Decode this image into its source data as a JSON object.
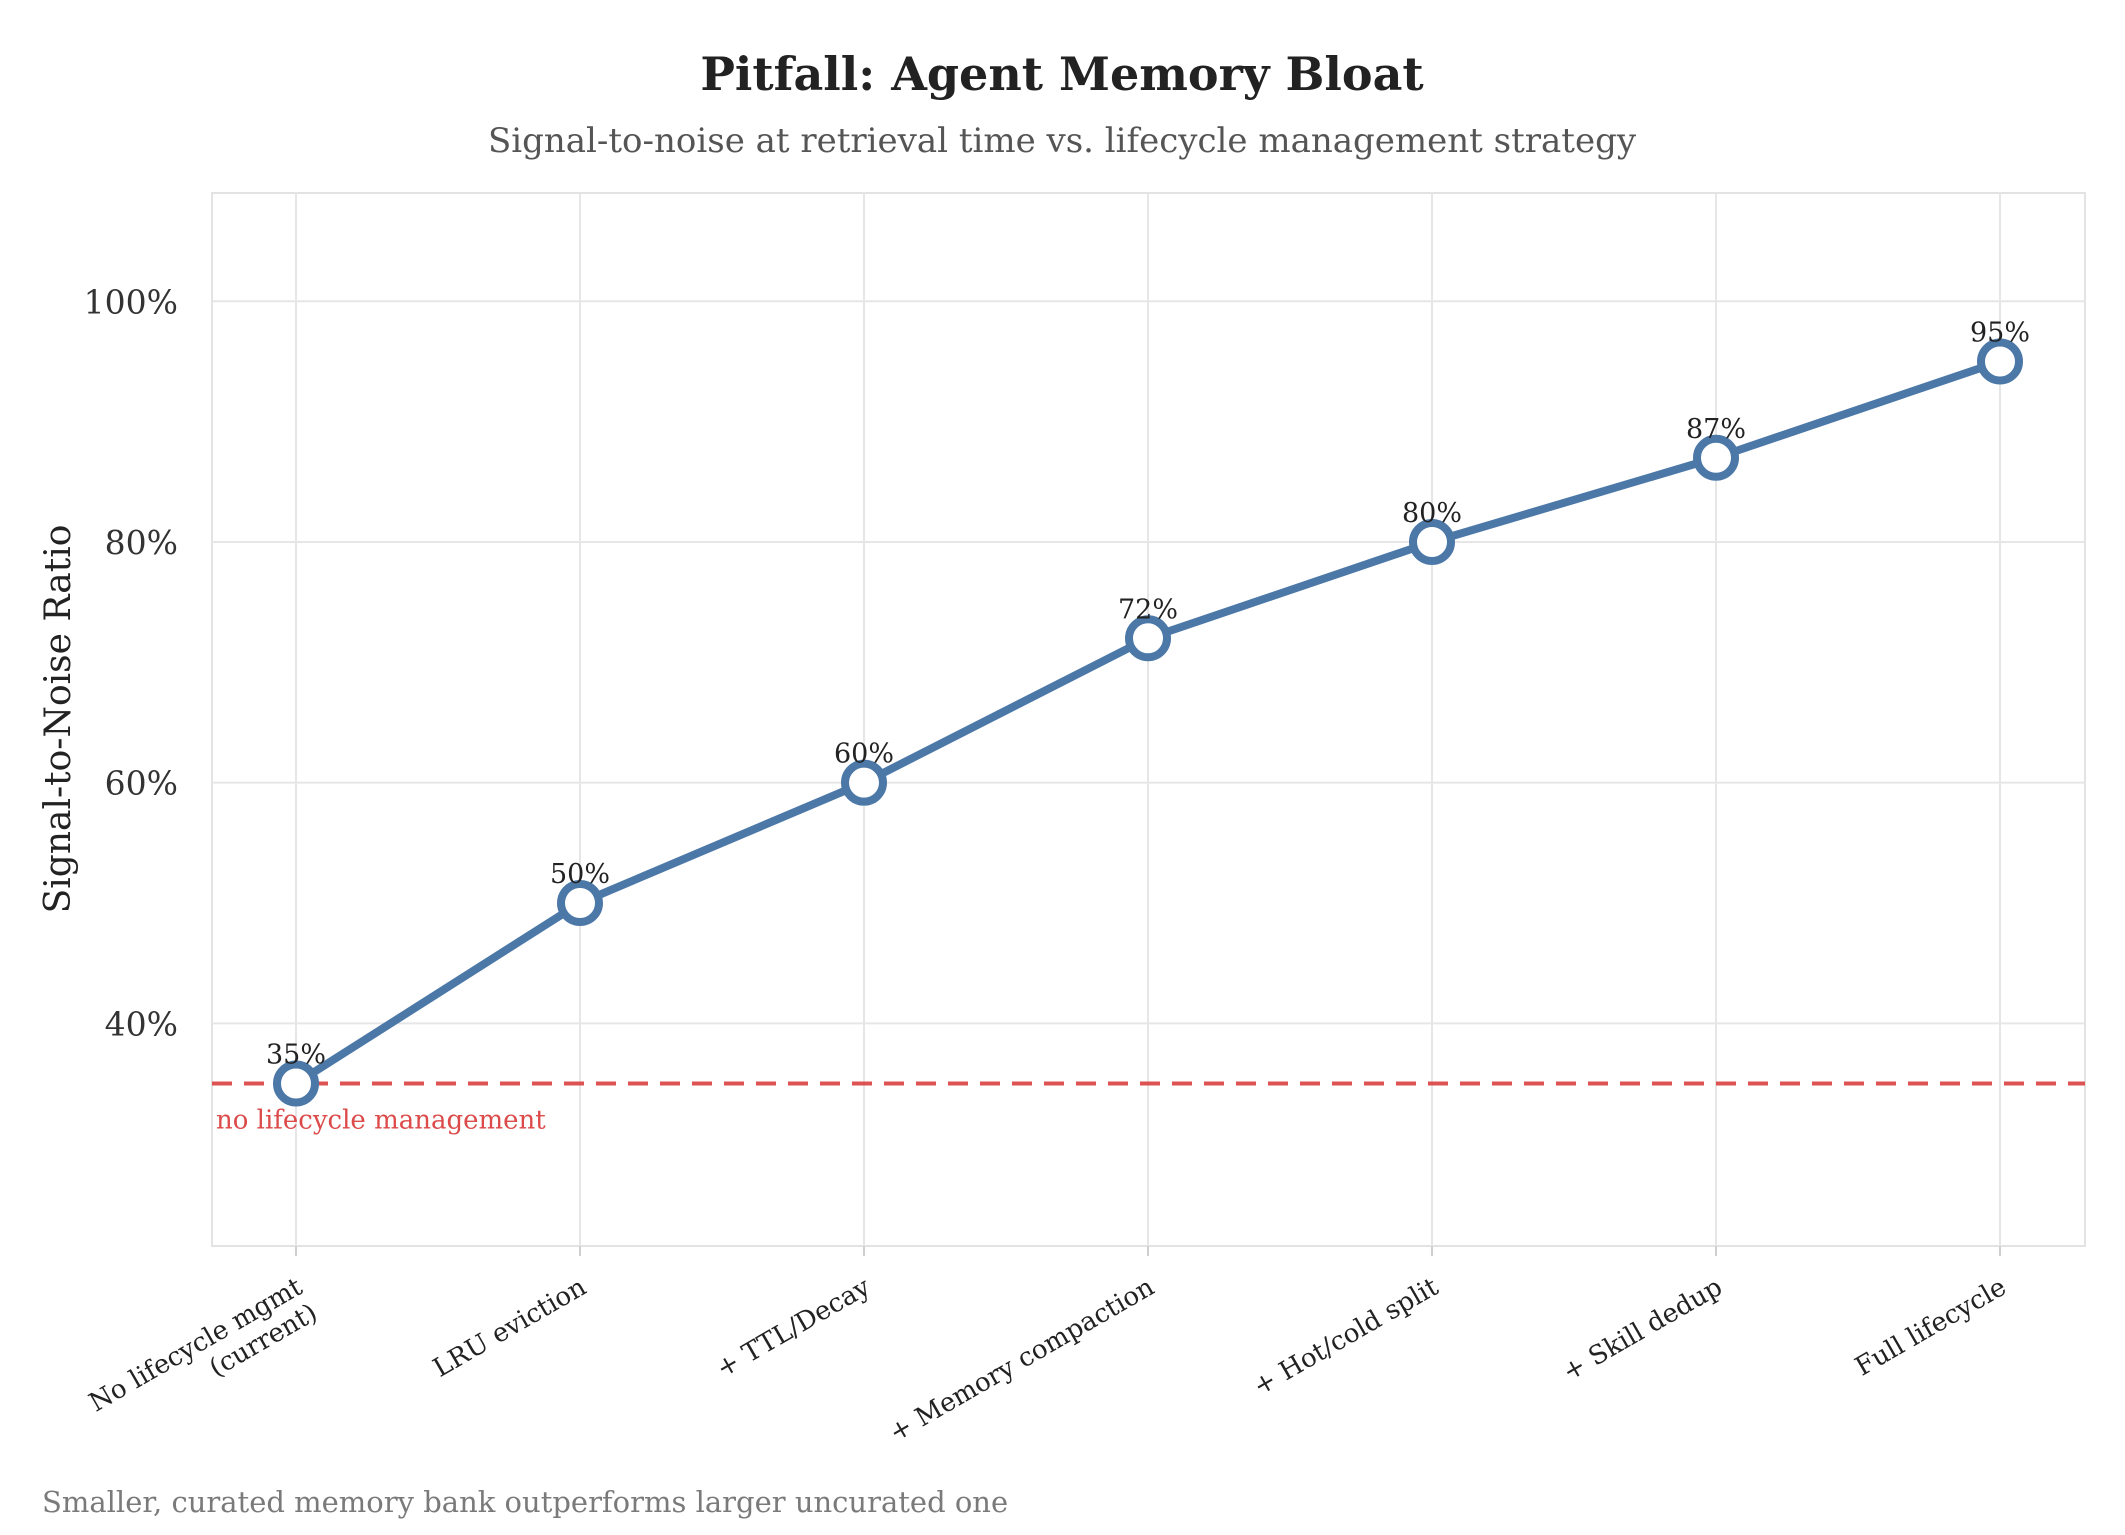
{
  "chart_data": {
    "type": "line",
    "title": "Pitfall: Agent Memory Bloat",
    "subtitle": "Signal-to-noise at retrieval time vs. lifecycle management strategy",
    "xlabel": "",
    "ylabel": "Signal-to-Noise Ratio",
    "categories": [
      "No lifecycle mgmt\n(current)",
      "LRU eviction",
      "+ TTL/Decay",
      "+ Memory compaction",
      "+ Hot/cold split",
      "+ Skill dedup",
      "Full lifecycle"
    ],
    "series": [
      {
        "values": [
          35,
          50,
          60,
          72,
          80,
          87,
          95
        ]
      }
    ],
    "data_labels": [
      "35%",
      "50%",
      "60%",
      "72%",
      "80%",
      "87%",
      "95%"
    ],
    "ylim": [
      0.215,
      1.09
    ],
    "yticks": [
      40,
      60,
      80,
      100
    ],
    "ytick_labels": [
      "40%",
      "60%",
      "80%",
      "100%"
    ],
    "reference_line": {
      "value": 35,
      "label": "no lifecycle management",
      "style": "dashed",
      "color": "#dc4a4a"
    },
    "grid": true,
    "legend": "none",
    "colors": {
      "line": "#4c78a8",
      "marker_fill": "#ffffff",
      "grid": "#e6e6e6"
    },
    "caption": "Smaller, curated memory bank outperforms larger uncurated one"
  }
}
